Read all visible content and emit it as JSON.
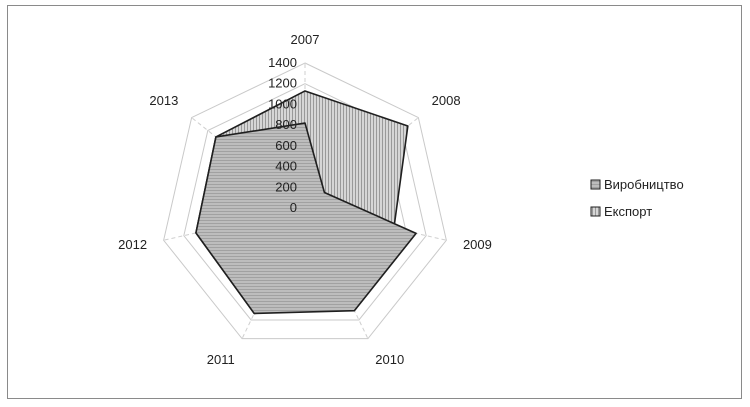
{
  "chart_data": {
    "type": "radar",
    "categories": [
      "2007",
      "2008",
      "2009",
      "2010",
      "2011",
      "2012",
      "2013"
    ],
    "series": [
      {
        "name": "Виробництво",
        "values": [
          820,
          240,
          1100,
          1100,
          1130,
          1080,
          1100
        ],
        "color": "#b8b8b8"
      },
      {
        "name": "Експорт",
        "values": [
          1130,
          1270,
          880,
          1020,
          1130,
          1080,
          1100
        ],
        "color": "#c8c8c8"
      }
    ],
    "ticks": [
      "0",
      "200",
      "400",
      "600",
      "800",
      "1000",
      "1200",
      "1400"
    ],
    "rmax": 1400,
    "title": "",
    "legend_position": "right",
    "grid": true
  }
}
